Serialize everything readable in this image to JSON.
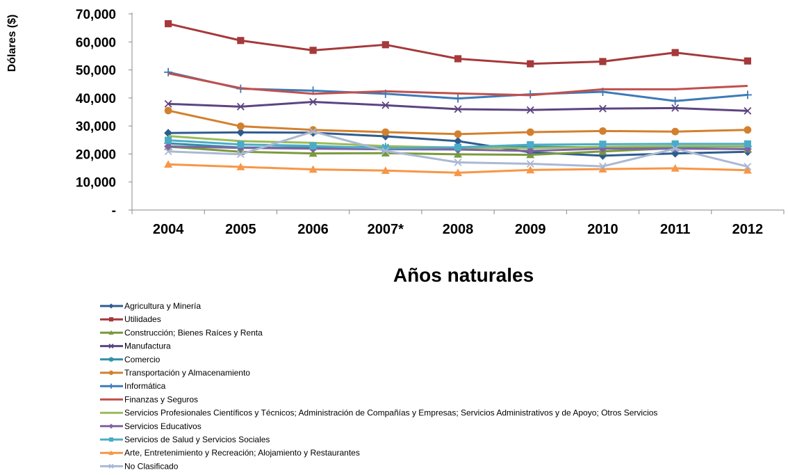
{
  "chart_data": {
    "type": "line",
    "title": "",
    "xlabel": "Años naturales",
    "ylabel": "Dólares ($)",
    "ylim": [
      0,
      70000
    ],
    "yticks": [
      0,
      10000,
      20000,
      30000,
      40000,
      50000,
      60000,
      70000
    ],
    "ytick_labels": [
      "-",
      "10,000",
      "20,000",
      "30,000",
      "40,000",
      "50,000",
      "60,000",
      "70,000"
    ],
    "categories": [
      "2004",
      "2005",
      "2006",
      "2007*",
      "2008",
      "2009",
      "2010",
      "2011",
      "2012"
    ],
    "legend_position": "bottom-left",
    "grid": false,
    "series": [
      {
        "name": "Agricultura y Minería",
        "color": "#2e5c8f",
        "marker": "diamond",
        "values": [
          27500,
          27700,
          27600,
          26300,
          24600,
          20600,
          19400,
          20200,
          20800
        ]
      },
      {
        "name": "Utilidades",
        "color": "#a5393b",
        "marker": "square",
        "values": [
          66500,
          60500,
          57000,
          59000,
          54000,
          52200,
          53000,
          56200,
          53200
        ]
      },
      {
        "name": "Construcción; Bienes Raíces y Renta",
        "color": "#7a9a3c",
        "marker": "triangle",
        "values": [
          22600,
          20800,
          20200,
          20300,
          19900,
          19700,
          20900,
          22100,
          21700
        ]
      },
      {
        "name": "Manufactura",
        "color": "#5c4481",
        "marker": "x",
        "values": [
          37900,
          36900,
          38600,
          37400,
          36000,
          35700,
          36200,
          36400,
          35400
        ]
      },
      {
        "name": "Comercio",
        "color": "#2f8fa8",
        "marker": "star",
        "values": [
          23800,
          22300,
          22300,
          22500,
          22100,
          22600,
          22400,
          22600,
          22700
        ]
      },
      {
        "name": "Transportación y Almacenamiento",
        "color": "#d3802e",
        "marker": "circle",
        "values": [
          35500,
          29900,
          28600,
          27800,
          27100,
          27800,
          28200,
          28000,
          28600
        ]
      },
      {
        "name": "Informática",
        "color": "#3d7ab8",
        "marker": "plus",
        "values": [
          49200,
          43300,
          42600,
          41500,
          39800,
          41300,
          42200,
          38900,
          41100
        ]
      },
      {
        "name": "Finanzas y Seguros",
        "color": "#c0504d",
        "marker": "none",
        "values": [
          48800,
          43500,
          41500,
          42400,
          41600,
          41000,
          43100,
          43100,
          44300
        ]
      },
      {
        "name": "Servicios Profesionales Científicos y Técnicos; Administración de Compañías y Empresas; Servicios Administrativos y de Apoyo; Otros Servicios",
        "color": "#9bbb59",
        "marker": "none",
        "values": [
          26400,
          24600,
          24000,
          22800,
          22300,
          22100,
          22600,
          22800,
          22800
        ]
      },
      {
        "name": "Servicios Educativos",
        "color": "#8064a2",
        "marker": "diamond",
        "values": [
          22700,
          22200,
          21900,
          21700,
          21600,
          21100,
          21900,
          21900,
          21800
        ]
      },
      {
        "name": "Servicios de Salud y Servicios Sociales",
        "color": "#4bacc6",
        "marker": "square",
        "values": [
          24900,
          23400,
          22900,
          22000,
          22400,
          23300,
          23500,
          23600,
          23600
        ]
      },
      {
        "name": "Arte, Entretenimiento y Recreación; Alojamiento y Restaurantes",
        "color": "#f79646",
        "marker": "triangle",
        "values": [
          16300,
          15400,
          14500,
          14100,
          13300,
          14300,
          14600,
          14900,
          14200
        ]
      },
      {
        "name": "No Clasificado",
        "color": "#a9b8d4",
        "marker": "x",
        "values": [
          20900,
          19900,
          28000,
          21100,
          17000,
          16500,
          15600,
          21900,
          15500
        ]
      }
    ]
  }
}
